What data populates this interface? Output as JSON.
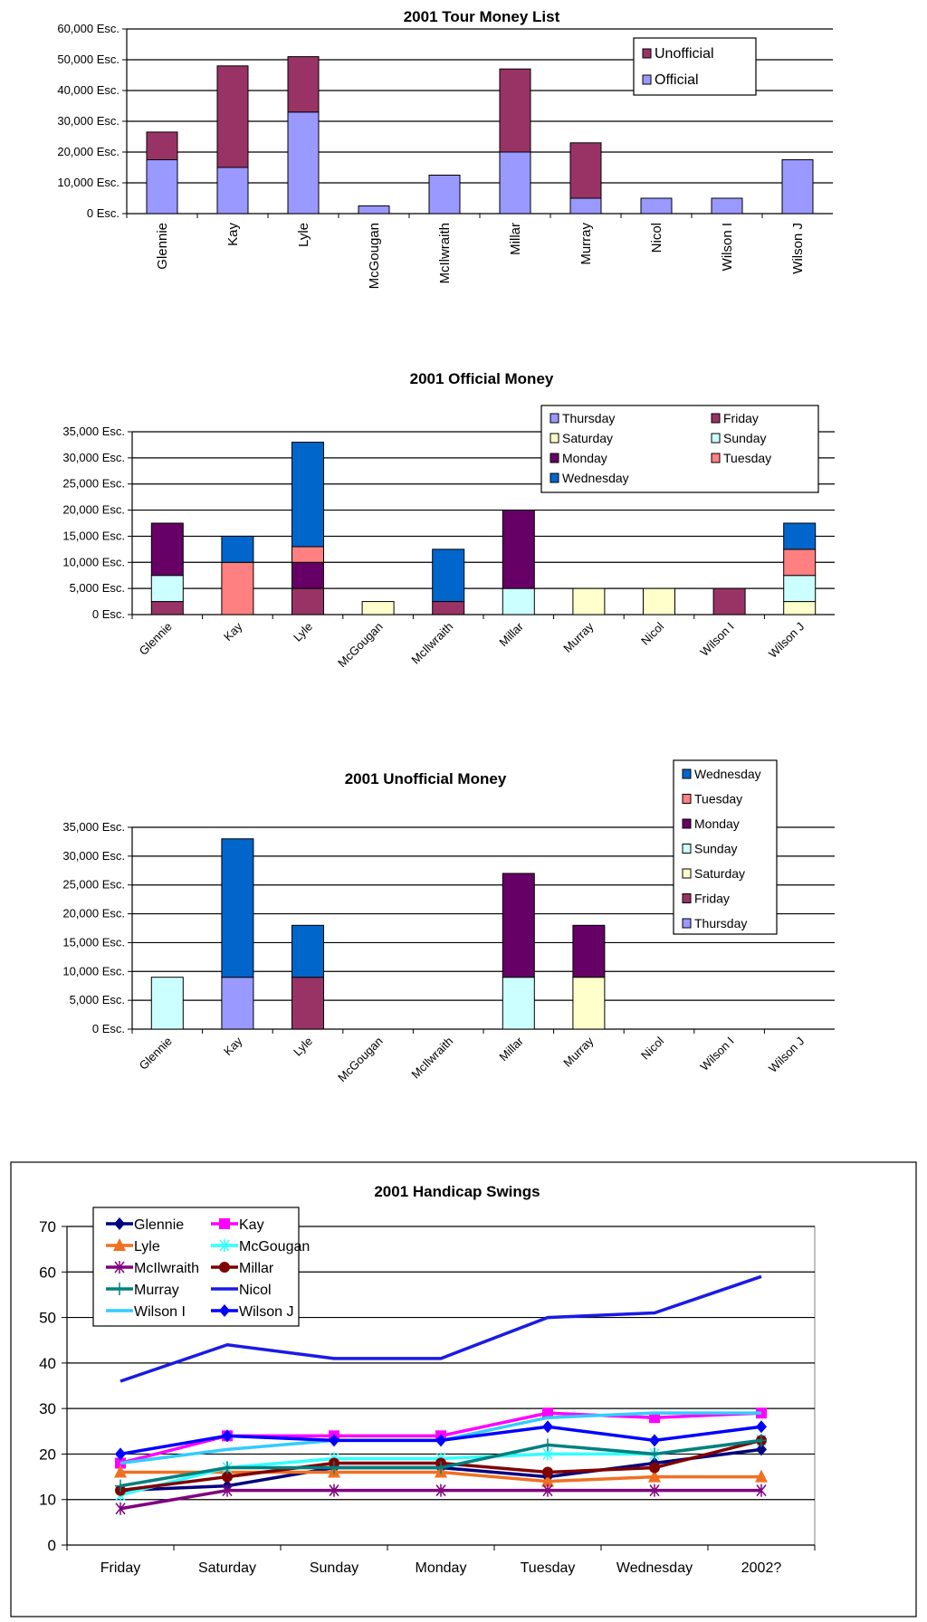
{
  "chart_data": [
    {
      "type": "bar",
      "stacked": true,
      "title": "2001 Tour Money List",
      "categories": [
        "Glennie",
        "Kay",
        "Lyle",
        "McGougan",
        "McIlwraith",
        "Millar",
        "Murray",
        "Nicol",
        "Wilson I",
        "Wilson J"
      ],
      "ylim": [
        0,
        60000
      ],
      "ytick_labels": [
        "0 Esc.",
        "10,000 Esc.",
        "20,000 Esc.",
        "30,000 Esc.",
        "40,000 Esc.",
        "50,000 Esc.",
        "60,000 Esc."
      ],
      "grid": true,
      "legend_position": "top-right",
      "legend_order": [
        "Unofficial",
        "Official"
      ],
      "series": [
        {
          "name": "Official",
          "color": "#9999FF",
          "values": [
            17500,
            15000,
            33000,
            2500,
            12500,
            20000,
            5000,
            5000,
            5000,
            17500
          ]
        },
        {
          "name": "Unofficial",
          "color": "#993366",
          "values": [
            9000,
            33000,
            18000,
            0,
            0,
            27000,
            18000,
            0,
            0,
            0
          ]
        }
      ]
    },
    {
      "type": "bar",
      "stacked": true,
      "title": "2001 Official Money",
      "categories": [
        "Glennie",
        "Kay",
        "Lyle",
        "McGougan",
        "McIlwraith",
        "Millar",
        "Murray",
        "Nicol",
        "Wilson I",
        "Wilson J"
      ],
      "ylim": [
        0,
        35000
      ],
      "ytick_labels": [
        "0 Esc.",
        "5,000 Esc.",
        "10,000 Esc.",
        "15,000 Esc.",
        "20,000 Esc.",
        "25,000 Esc.",
        "30,000 Esc.",
        "35,000 Esc."
      ],
      "grid": true,
      "legend_position": "top-right",
      "legend_order": [
        "Thursday",
        "Friday",
        "Saturday",
        "Sunday",
        "Monday",
        "Tuesday",
        "Wednesday"
      ],
      "series": [
        {
          "name": "Thursday",
          "color": "#9999FF",
          "values": [
            0,
            0,
            0,
            0,
            0,
            0,
            0,
            0,
            0,
            0
          ]
        },
        {
          "name": "Friday",
          "color": "#993366",
          "values": [
            2500,
            0,
            5000,
            0,
            2500,
            0,
            0,
            0,
            5000,
            0
          ]
        },
        {
          "name": "Saturday",
          "color": "#FFFFCC",
          "values": [
            0,
            0,
            0,
            2500,
            0,
            0,
            5000,
            5000,
            0,
            2500
          ]
        },
        {
          "name": "Sunday",
          "color": "#CCFFFF",
          "values": [
            5000,
            0,
            0,
            0,
            0,
            5000,
            0,
            0,
            0,
            5000
          ]
        },
        {
          "name": "Monday",
          "color": "#660066",
          "values": [
            10000,
            0,
            5000,
            0,
            0,
            15000,
            0,
            0,
            0,
            0
          ]
        },
        {
          "name": "Tuesday",
          "color": "#FF8080",
          "values": [
            0,
            10000,
            3000,
            0,
            0,
            0,
            0,
            0,
            0,
            5000
          ]
        },
        {
          "name": "Wednesday",
          "color": "#0066CC",
          "values": [
            0,
            5000,
            20000,
            0,
            10000,
            0,
            0,
            0,
            0,
            5000
          ]
        }
      ]
    },
    {
      "type": "bar",
      "stacked": true,
      "title": "2001 Unofficial Money",
      "categories": [
        "Glennie",
        "Kay",
        "Lyle",
        "McGougan",
        "McIlwraith",
        "Millar",
        "Murray",
        "Nicol",
        "Wilson I",
        "Wilson J"
      ],
      "ylim": [
        0,
        35000
      ],
      "ytick_labels": [
        "0 Esc.",
        "5,000 Esc.",
        "10,000 Esc.",
        "15,000 Esc.",
        "20,000 Esc.",
        "25,000 Esc.",
        "30,000 Esc.",
        "35,000 Esc."
      ],
      "grid": true,
      "legend_position": "right",
      "legend_order": [
        "Wednesday",
        "Tuesday",
        "Monday",
        "Sunday",
        "Saturday",
        "Friday",
        "Thursday"
      ],
      "series": [
        {
          "name": "Thursday",
          "color": "#9999FF",
          "values": [
            0,
            9000,
            0,
            0,
            0,
            0,
            0,
            0,
            0,
            0
          ]
        },
        {
          "name": "Friday",
          "color": "#993366",
          "values": [
            0,
            0,
            9000,
            0,
            0,
            0,
            0,
            0,
            0,
            0
          ]
        },
        {
          "name": "Saturday",
          "color": "#FFFFCC",
          "values": [
            0,
            0,
            0,
            0,
            0,
            0,
            9000,
            0,
            0,
            0
          ]
        },
        {
          "name": "Sunday",
          "color": "#CCFFFF",
          "values": [
            9000,
            0,
            0,
            0,
            0,
            9000,
            0,
            0,
            0,
            0
          ]
        },
        {
          "name": "Monday",
          "color": "#660066",
          "values": [
            0,
            0,
            0,
            0,
            0,
            18000,
            9000,
            0,
            0,
            0
          ]
        },
        {
          "name": "Tuesday",
          "color": "#FF8080",
          "values": [
            0,
            0,
            0,
            0,
            0,
            0,
            0,
            0,
            0,
            0
          ]
        },
        {
          "name": "Wednesday",
          "color": "#0066CC",
          "values": [
            0,
            24000,
            9000,
            0,
            0,
            0,
            0,
            0,
            0,
            0
          ]
        }
      ]
    },
    {
      "type": "line",
      "title": "2001 Handicap Swings",
      "x": [
        "Friday",
        "Saturday",
        "Sunday",
        "Monday",
        "Tuesday",
        "Wednesday",
        "2002?"
      ],
      "ylim": [
        0,
        70
      ],
      "ytick_labels": [
        "0",
        "10",
        "20",
        "30",
        "40",
        "50",
        "60",
        "70"
      ],
      "grid": true,
      "legend_position": "top-left",
      "series": [
        {
          "name": "Glennie",
          "color": "#000080",
          "marker": "diamond",
          "values": [
            12,
            13,
            17,
            17,
            15,
            18,
            21
          ]
        },
        {
          "name": "Kay",
          "color": "#FF00FF",
          "marker": "square",
          "values": [
            18,
            24,
            24,
            24,
            29,
            28,
            29
          ]
        },
        {
          "name": "Lyle",
          "color": "#F07020",
          "marker": "triangle",
          "values": [
            16,
            16,
            16,
            16,
            14,
            15,
            15
          ]
        },
        {
          "name": "McGougan",
          "color": "#33FFFF",
          "marker": "star",
          "values": [
            11,
            17,
            19,
            19,
            20,
            20,
            23
          ]
        },
        {
          "name": "McIlwraith",
          "color": "#800080",
          "marker": "asterisk",
          "values": [
            8,
            12,
            12,
            12,
            12,
            12,
            12
          ]
        },
        {
          "name": "Millar",
          "color": "#800000",
          "marker": "circle",
          "values": [
            12,
            15,
            18,
            18,
            16,
            17,
            23
          ]
        },
        {
          "name": "Murray",
          "color": "#008080",
          "marker": "plus",
          "values": [
            13,
            17,
            17,
            17,
            22,
            20,
            23
          ]
        },
        {
          "name": "Nicol",
          "color": "#1A1AE6",
          "marker": "none",
          "values": [
            36,
            44,
            41,
            41,
            50,
            51,
            59
          ]
        },
        {
          "name": "Wilson I",
          "color": "#33CCFF",
          "marker": "none",
          "values": [
            18,
            21,
            23,
            23,
            28,
            29,
            29
          ]
        },
        {
          "name": "Wilson J",
          "color": "#0000FF",
          "marker": "diamond",
          "values": [
            20,
            24,
            23,
            23,
            26,
            23,
            26
          ]
        }
      ]
    }
  ]
}
